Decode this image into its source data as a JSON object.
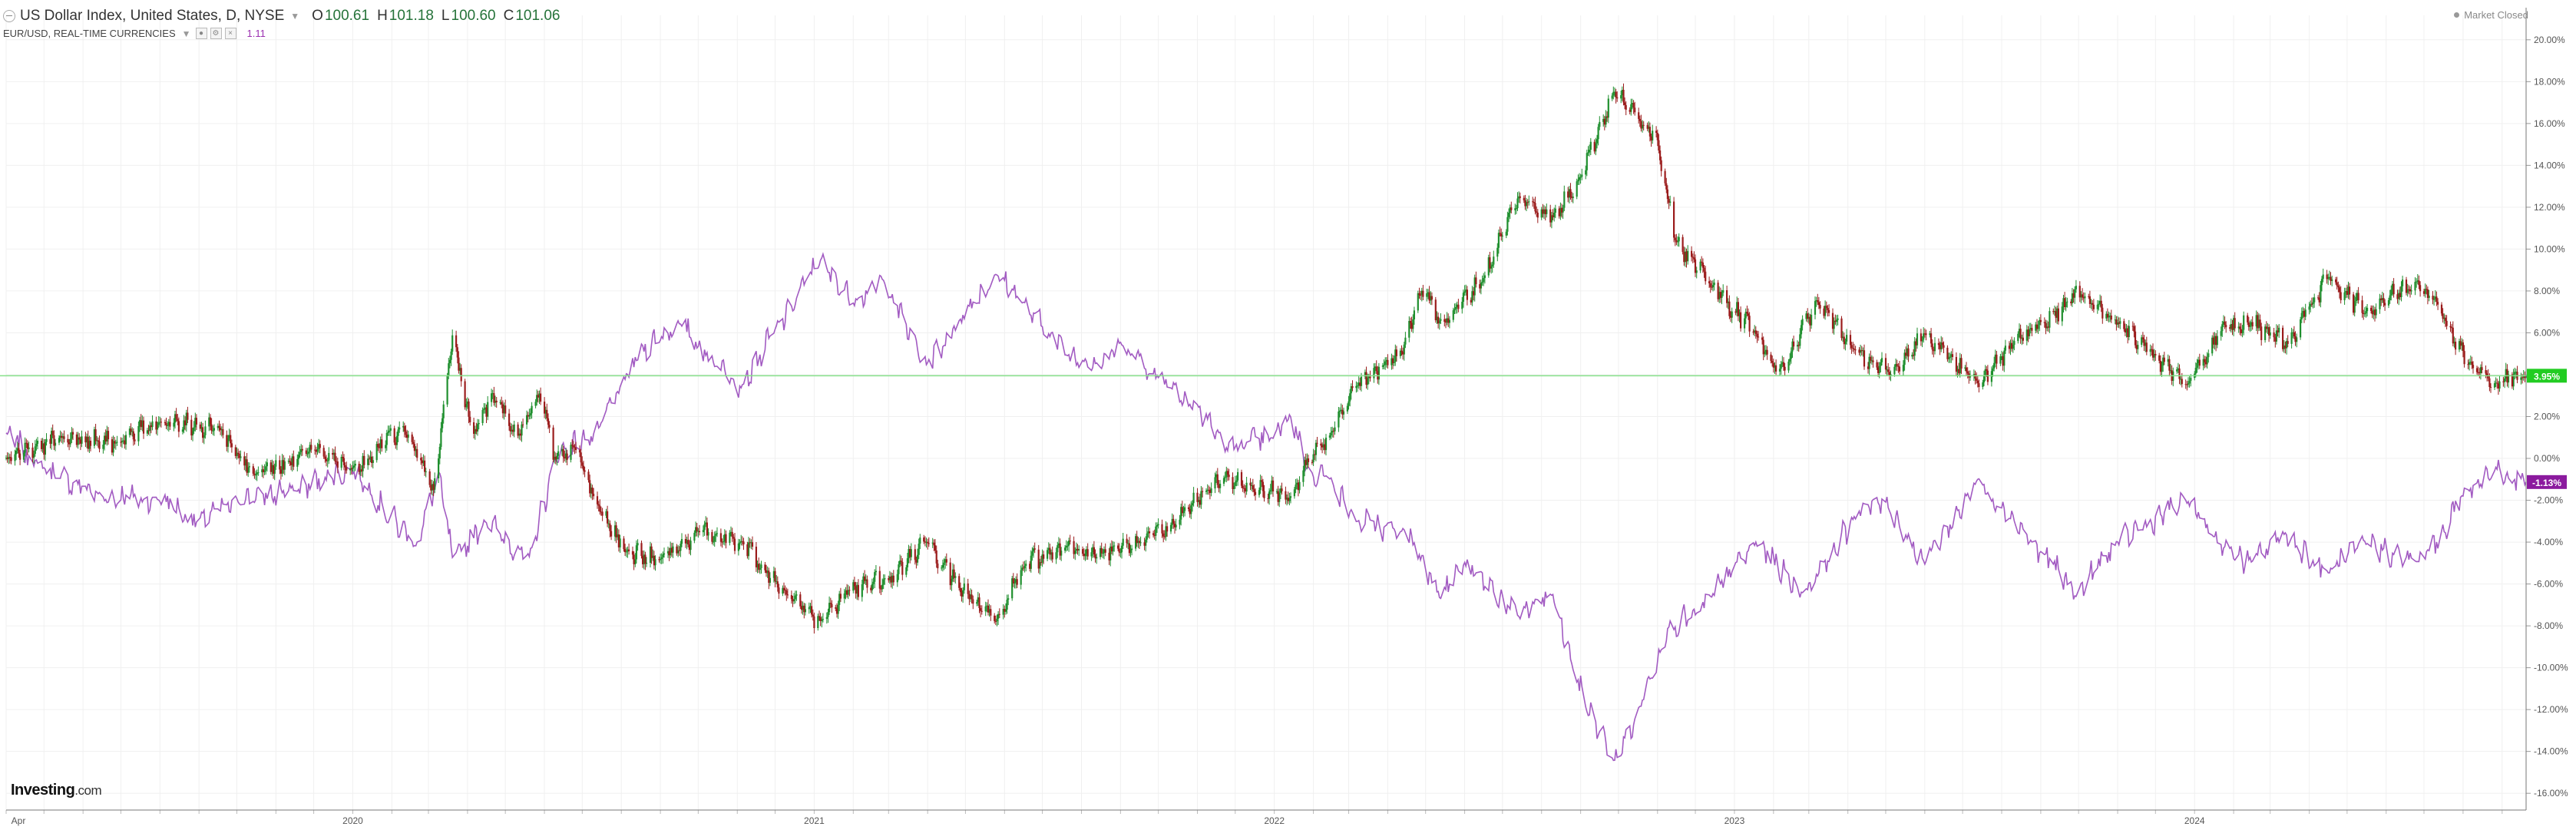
{
  "header": {
    "symbol_title": "US Dollar Index, United States, D, NYSE",
    "open_label": "O",
    "open_value": "100.61",
    "high_label": "H",
    "high_value": "101.18",
    "low_label": "L",
    "low_value": "100.60",
    "close_label": "C",
    "close_value": "101.06",
    "overlay_title": "EUR/USD, REAL-TIME CURRENCIES",
    "overlay_value": "1.11",
    "market_status": "Market Closed"
  },
  "brand": {
    "name": "Investing",
    "suffix": ".com"
  },
  "colors": {
    "up": "#1f8f2e",
    "down": "#9b1c1c",
    "eurusd_line": "#a25bc2",
    "current_line": "#86e08a",
    "current_label_bg": "#22cc22",
    "eur_label_bg": "#8b1a9e",
    "grid": "#f0f0f0"
  },
  "chart_data": {
    "type": "line",
    "y_axis": {
      "unit": "%",
      "range": [
        -16.8,
        20.8
      ],
      "ticks": [
        "20.00%",
        "18.00%",
        "16.00%",
        "14.00%",
        "12.00%",
        "10.00%",
        "8.00%",
        "6.00%",
        "4.00%",
        "2.00%",
        "0.00%",
        "-2.00%",
        "-4.00%",
        "-6.00%",
        "-8.00%",
        "-10.00%",
        "-12.00%",
        "-14.00%",
        "-16.00%"
      ]
    },
    "x_axis": {
      "range": [
        "2019-04-01",
        "2024-09-20"
      ],
      "ticks": [
        {
          "date": "2019-04-01",
          "label": "Apr"
        },
        {
          "date": "2020-01-01",
          "label": "2020"
        },
        {
          "date": "2021-01-01",
          "label": "2021"
        },
        {
          "date": "2022-01-01",
          "label": "2022"
        },
        {
          "date": "2023-01-01",
          "label": "2023"
        },
        {
          "date": "2024-01-01",
          "label": "2024"
        }
      ]
    },
    "grid": true,
    "current_dxy_label": "3.95%",
    "current_dxy_value": 3.95,
    "current_eurusd_label": "-1.13%",
    "current_eurusd_value": -1.13,
    "series": [
      {
        "id": "dxy",
        "style": "candlestick",
        "points": [
          [
            "2019-04-01",
            0
          ],
          [
            "2019-05-15",
            1
          ],
          [
            "2019-07-01",
            0.8
          ],
          [
            "2019-08-01",
            1.8
          ],
          [
            "2019-09-15",
            1.5
          ],
          [
            "2019-10-15",
            -0.8
          ],
          [
            "2019-12-01",
            0.5
          ],
          [
            "2019-12-31",
            -0.5
          ],
          [
            "2020-02-10",
            1.5
          ],
          [
            "2020-03-05",
            -1.5
          ],
          [
            "2020-03-20",
            5.9
          ],
          [
            "2020-04-05",
            1
          ],
          [
            "2020-04-20",
            3.1
          ],
          [
            "2020-05-10",
            1
          ],
          [
            "2020-05-28",
            3.1
          ],
          [
            "2020-06-10",
            0
          ],
          [
            "2020-06-25",
            0.5
          ],
          [
            "2020-07-10",
            -1.8
          ],
          [
            "2020-08-05",
            -4.5
          ],
          [
            "2020-09-01",
            -4.8
          ],
          [
            "2020-10-01",
            -3.5
          ],
          [
            "2020-11-05",
            -4
          ],
          [
            "2020-12-10",
            -6.5
          ],
          [
            "2021-01-06",
            -7.8
          ],
          [
            "2021-01-28",
            -6.3
          ],
          [
            "2021-03-01",
            -5.8
          ],
          [
            "2021-03-31",
            -4
          ],
          [
            "2021-04-25",
            -6
          ],
          [
            "2021-05-25",
            -7.8
          ],
          [
            "2021-06-18",
            -5
          ],
          [
            "2021-07-20",
            -4.2
          ],
          [
            "2021-08-20",
            -4.5
          ],
          [
            "2021-09-15",
            -4
          ],
          [
            "2021-10-10",
            -3.2
          ],
          [
            "2021-11-10",
            -1.5
          ],
          [
            "2021-11-25",
            -0.8
          ],
          [
            "2021-12-15",
            -1.5
          ],
          [
            "2022-01-14",
            -1.8
          ],
          [
            "2022-01-28",
            -0.2
          ],
          [
            "2022-02-15",
            1.2
          ],
          [
            "2022-03-07",
            3.5
          ],
          [
            "2022-04-10",
            5
          ],
          [
            "2022-04-28",
            8
          ],
          [
            "2022-05-15",
            6.5
          ],
          [
            "2022-06-15",
            8.5
          ],
          [
            "2022-07-14",
            12.5
          ],
          [
            "2022-08-10",
            11.5
          ],
          [
            "2022-09-01",
            13.5
          ],
          [
            "2022-09-27",
            17.5
          ],
          [
            "2022-10-14",
            16.5
          ],
          [
            "2022-10-31",
            15.5
          ],
          [
            "2022-11-15",
            10.5
          ],
          [
            "2022-12-10",
            8.5
          ],
          [
            "2023-01-18",
            6
          ],
          [
            "2023-02-05",
            4
          ],
          [
            "2023-03-07",
            7.5
          ],
          [
            "2023-04-10",
            5
          ],
          [
            "2023-05-05",
            4
          ],
          [
            "2023-06-01",
            6
          ],
          [
            "2023-07-14",
            3.5
          ],
          [
            "2023-08-10",
            5.5
          ],
          [
            "2023-09-01",
            6.5
          ],
          [
            "2023-10-03",
            7.9
          ],
          [
            "2023-11-01",
            6.5
          ],
          [
            "2023-12-27",
            3.5
          ],
          [
            "2024-01-20",
            6
          ],
          [
            "2024-02-15",
            6.5
          ],
          [
            "2024-03-15",
            5.5
          ],
          [
            "2024-04-16",
            8.7
          ],
          [
            "2024-05-15",
            7
          ],
          [
            "2024-06-26",
            8.5
          ],
          [
            "2024-07-15",
            7
          ],
          [
            "2024-08-05",
            4.5
          ],
          [
            "2024-08-27",
            3.6
          ],
          [
            "2024-09-20",
            3.95
          ]
        ]
      },
      {
        "id": "eurusd",
        "style": "line",
        "points": [
          [
            "2019-04-01",
            1.2
          ],
          [
            "2019-05-01",
            -0.5
          ],
          [
            "2019-06-15",
            -1.8
          ],
          [
            "2019-08-01",
            -2
          ],
          [
            "2019-09-01",
            -3
          ],
          [
            "2019-10-01",
            -2
          ],
          [
            "2019-11-15",
            -1.5
          ],
          [
            "2019-12-31",
            -0.5
          ],
          [
            "2020-02-20",
            -4.2
          ],
          [
            "2020-03-09",
            -0.7
          ],
          [
            "2020-03-20",
            -4.8
          ],
          [
            "2020-04-15",
            -3
          ],
          [
            "2020-05-20",
            -4.8
          ],
          [
            "2020-06-10",
            0
          ],
          [
            "2020-07-15",
            1.5
          ],
          [
            "2020-08-15",
            5
          ],
          [
            "2020-09-15",
            6.5
          ],
          [
            "2020-10-15",
            4.5
          ],
          [
            "2020-11-05",
            3.5
          ],
          [
            "2020-11-30",
            6
          ],
          [
            "2021-01-06",
            9.5
          ],
          [
            "2021-01-31",
            7.5
          ],
          [
            "2021-02-25",
            8.5
          ],
          [
            "2021-03-31",
            4.5
          ],
          [
            "2021-04-25",
            6.5
          ],
          [
            "2021-05-25",
            8.8
          ],
          [
            "2021-06-15",
            7.5
          ],
          [
            "2021-07-20",
            5
          ],
          [
            "2021-08-15",
            4.5
          ],
          [
            "2021-09-01",
            5.5
          ],
          [
            "2021-10-10",
            3.5
          ],
          [
            "2021-11-01",
            2.5
          ],
          [
            "2021-11-24",
            0.5
          ],
          [
            "2021-12-31",
            1
          ],
          [
            "2022-01-14",
            2
          ],
          [
            "2022-01-28",
            -0.5
          ],
          [
            "2022-02-15",
            -1
          ],
          [
            "2022-03-07",
            -3
          ],
          [
            "2022-04-15",
            -3.5
          ],
          [
            "2022-05-15",
            -6.5
          ],
          [
            "2022-06-01",
            -5
          ],
          [
            "2022-07-14",
            -7.5
          ],
          [
            "2022-08-10",
            -6.5
          ],
          [
            "2022-08-28",
            -10.5
          ],
          [
            "2022-09-27",
            -14.5
          ],
          [
            "2022-10-14",
            -12.5
          ],
          [
            "2022-11-10",
            -8
          ],
          [
            "2022-12-01",
            -7.5
          ],
          [
            "2023-01-18",
            -4
          ],
          [
            "2023-02-25",
            -6.5
          ],
          [
            "2023-04-10",
            -2.5
          ],
          [
            "2023-04-30",
            -2
          ],
          [
            "2023-06-01",
            -5
          ],
          [
            "2023-07-14",
            -1
          ],
          [
            "2023-08-25",
            -4
          ],
          [
            "2023-09-30",
            -6.5
          ],
          [
            "2023-10-31",
            -4
          ],
          [
            "2023-12-27",
            -2
          ],
          [
            "2024-01-20",
            -4
          ],
          [
            "2024-02-15",
            -5
          ],
          [
            "2024-03-10",
            -3.5
          ],
          [
            "2024-04-16",
            -5.5
          ],
          [
            "2024-05-15",
            -4
          ],
          [
            "2024-06-26",
            -5
          ],
          [
            "2024-07-15",
            -3.5
          ],
          [
            "2024-08-05",
            -1.5
          ],
          [
            "2024-08-27",
            -0.5
          ],
          [
            "2024-09-20",
            -1.13
          ]
        ]
      }
    ]
  }
}
